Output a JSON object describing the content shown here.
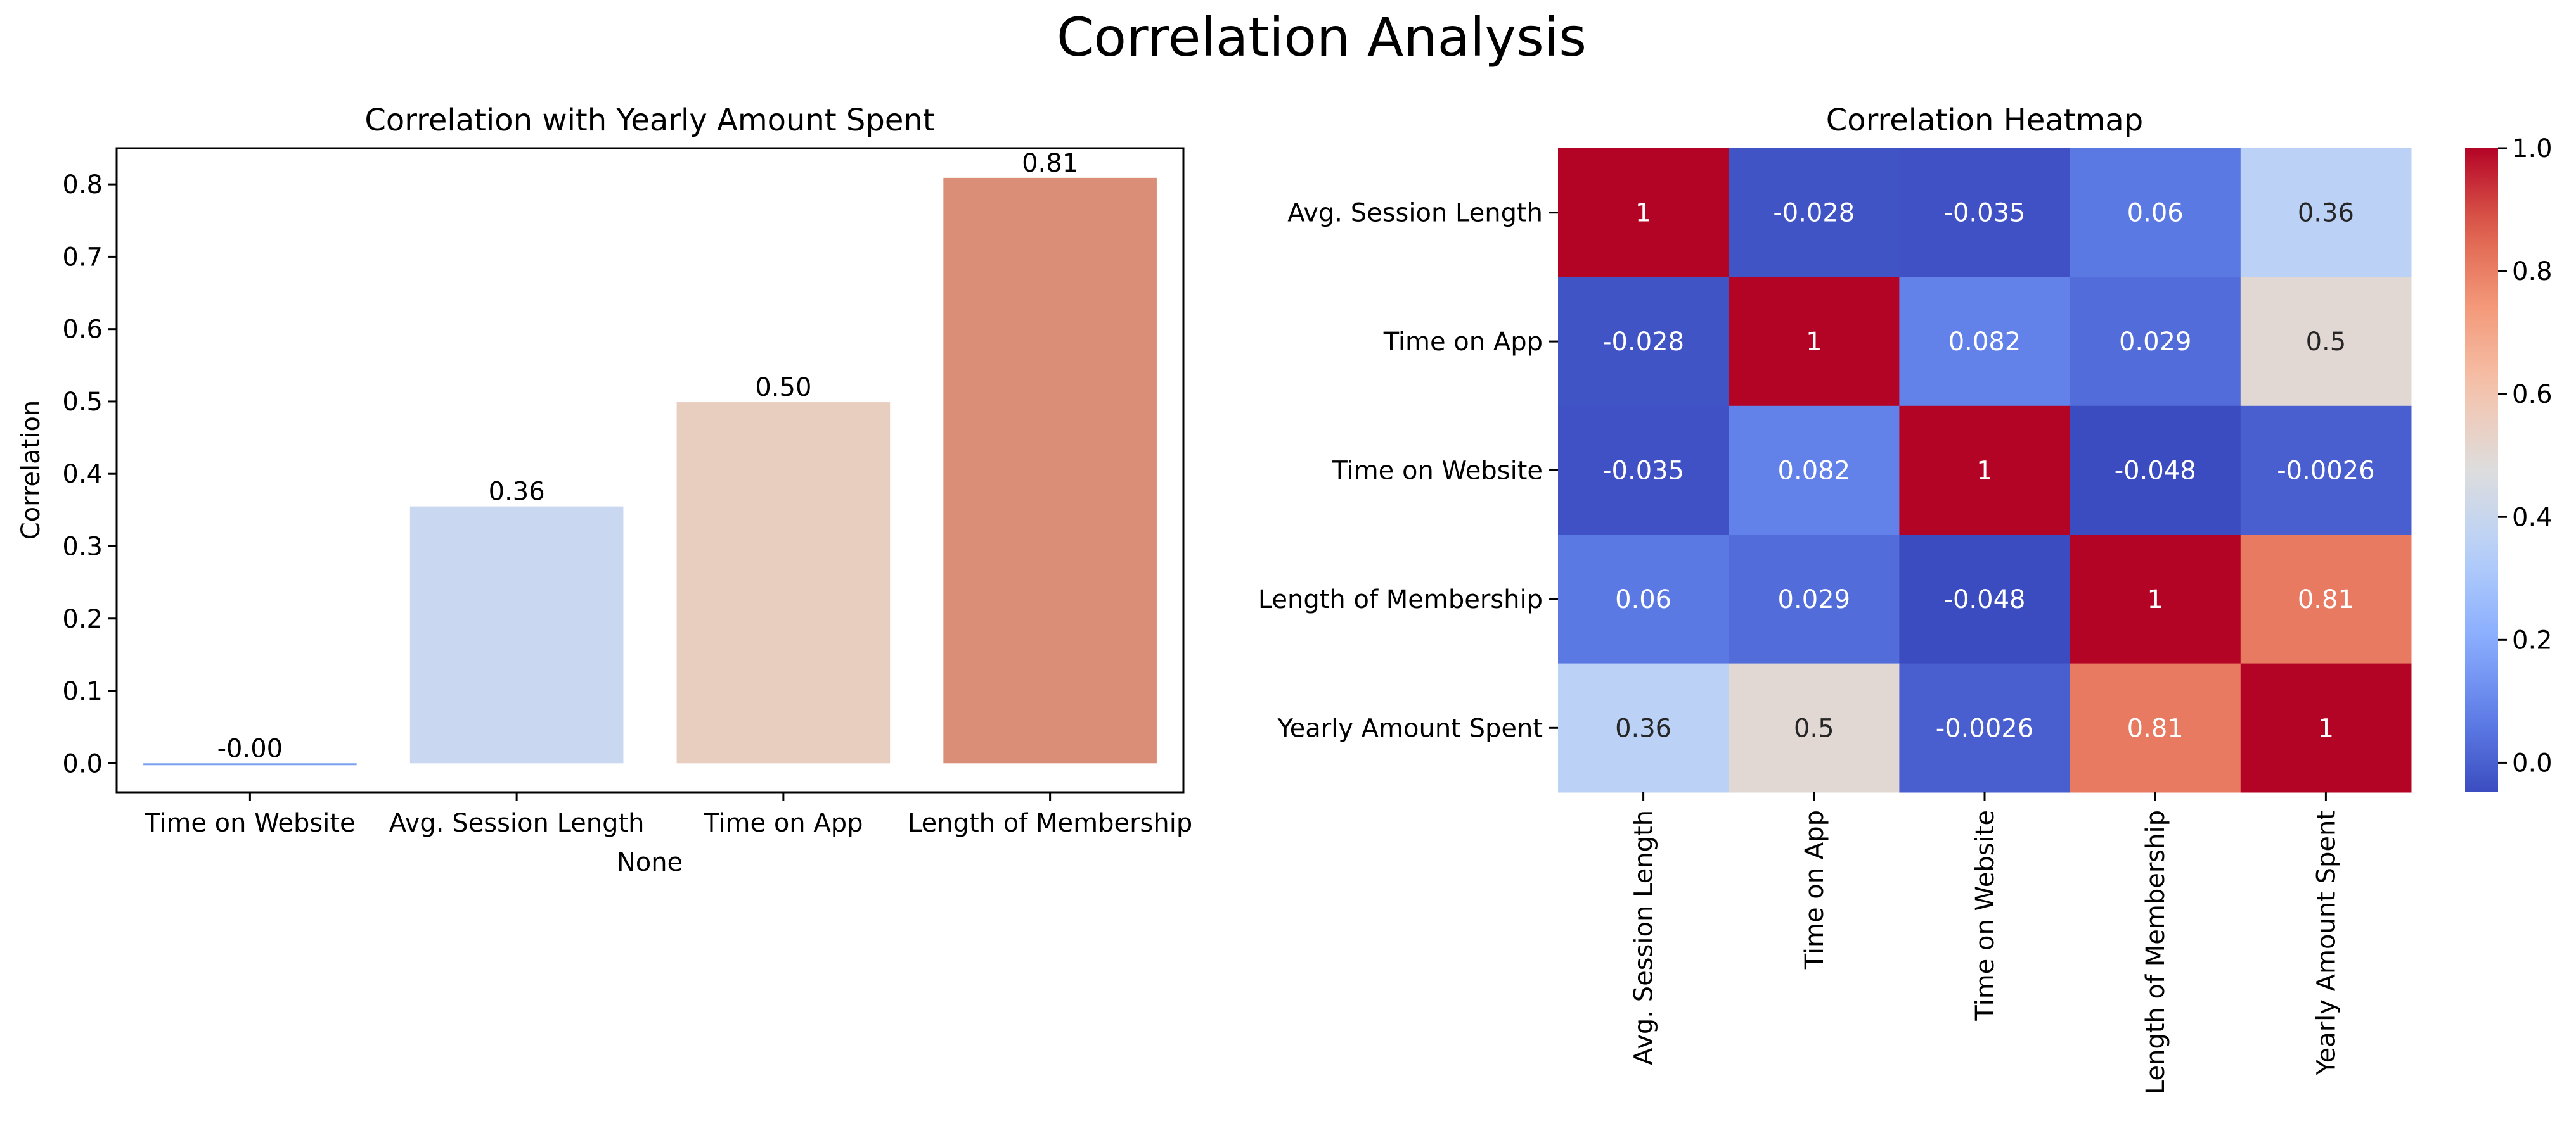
{
  "figure": {
    "suptitle": "Correlation Analysis"
  },
  "chart_data": [
    {
      "type": "bar",
      "title": "Correlation with Yearly Amount Spent",
      "xlabel": "None",
      "ylabel": "Correlation",
      "categories": [
        "Time on Website",
        "Avg. Session Length",
        "Time on App",
        "Length of Membership"
      ],
      "values": [
        -0.0026,
        0.355,
        0.499,
        0.809
      ],
      "data_labels": [
        "-0.00",
        "0.36",
        "0.50",
        "0.81"
      ],
      "colors": [
        "#7a9ff0",
        "#c9d7f0",
        "#e8cebf",
        "#da8e77"
      ],
      "ylim": [
        -0.04,
        0.85
      ],
      "yticks": [
        "0.0",
        "0.1",
        "0.2",
        "0.3",
        "0.4",
        "0.5",
        "0.6",
        "0.7",
        "0.8"
      ],
      "ytick_values": [
        0.0,
        0.1,
        0.2,
        0.3,
        0.4,
        0.5,
        0.6,
        0.7,
        0.8
      ],
      "grid": false
    },
    {
      "type": "heatmap",
      "title": "Correlation Heatmap",
      "labels": [
        "Avg. Session Length",
        "Time on App",
        "Time on Website",
        "Length of Membership",
        "Yearly Amount Spent"
      ],
      "matrix": [
        [
          1,
          -0.028,
          -0.035,
          0.06,
          0.36
        ],
        [
          -0.028,
          1,
          0.082,
          0.029,
          0.5
        ],
        [
          -0.035,
          0.082,
          1,
          -0.048,
          -0.0026
        ],
        [
          0.06,
          0.029,
          -0.048,
          1,
          0.81
        ],
        [
          0.36,
          0.5,
          -0.0026,
          0.81,
          1
        ]
      ],
      "annotations": [
        [
          "1",
          "-0.028",
          "-0.035",
          "0.06",
          "0.36"
        ],
        [
          "-0.028",
          "1",
          "0.082",
          "0.029",
          "0.5"
        ],
        [
          "-0.035",
          "0.082",
          "1",
          "-0.048",
          "-0.0026"
        ],
        [
          "0.06",
          "0.029",
          "-0.048",
          "1",
          "0.81"
        ],
        [
          "0.36",
          "0.5",
          "-0.0026",
          "0.81",
          "1"
        ]
      ],
      "colormap": "coolwarm",
      "colorbar": {
        "range": [
          -0.048,
          1.0
        ],
        "ticks": [
          "0.0",
          "0.2",
          "0.4",
          "0.6",
          "0.8",
          "1.0"
        ],
        "tick_values": [
          0.0,
          0.2,
          0.4,
          0.6,
          0.8,
          1.0
        ]
      }
    }
  ]
}
